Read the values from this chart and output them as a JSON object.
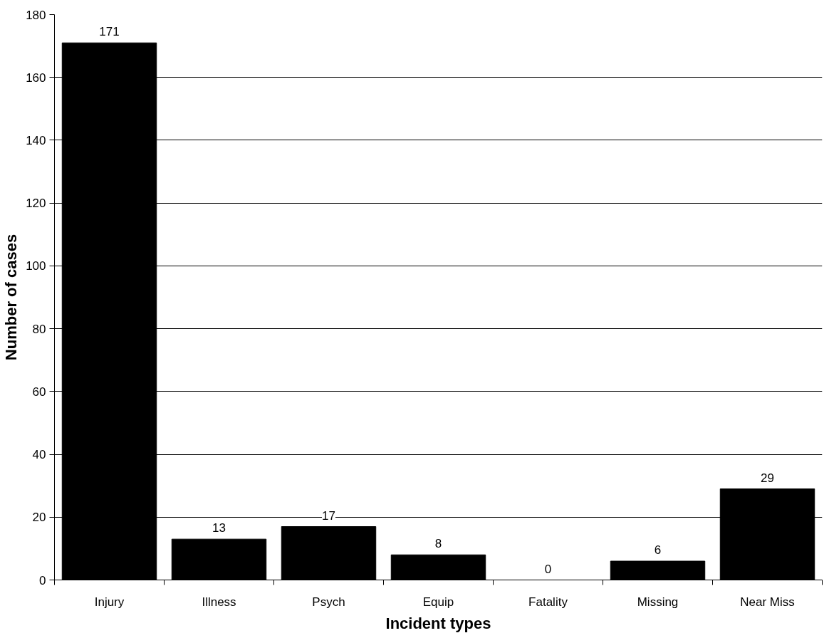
{
  "chart_data": {
    "type": "bar",
    "xlabel": "Incident types",
    "ylabel": "Number of cases",
    "categories": [
      "Injury",
      "Illness",
      "Psych",
      "Equip",
      "Fatality",
      "Missing",
      "Near Miss"
    ],
    "values": [
      171,
      13,
      17,
      8,
      0,
      6,
      29
    ],
    "color": "#000000",
    "ylim": [
      0,
      180
    ],
    "yticks": [
      0,
      20,
      40,
      60,
      80,
      100,
      120,
      140,
      160,
      180
    ],
    "grid": "y",
    "data_labels": true
  }
}
